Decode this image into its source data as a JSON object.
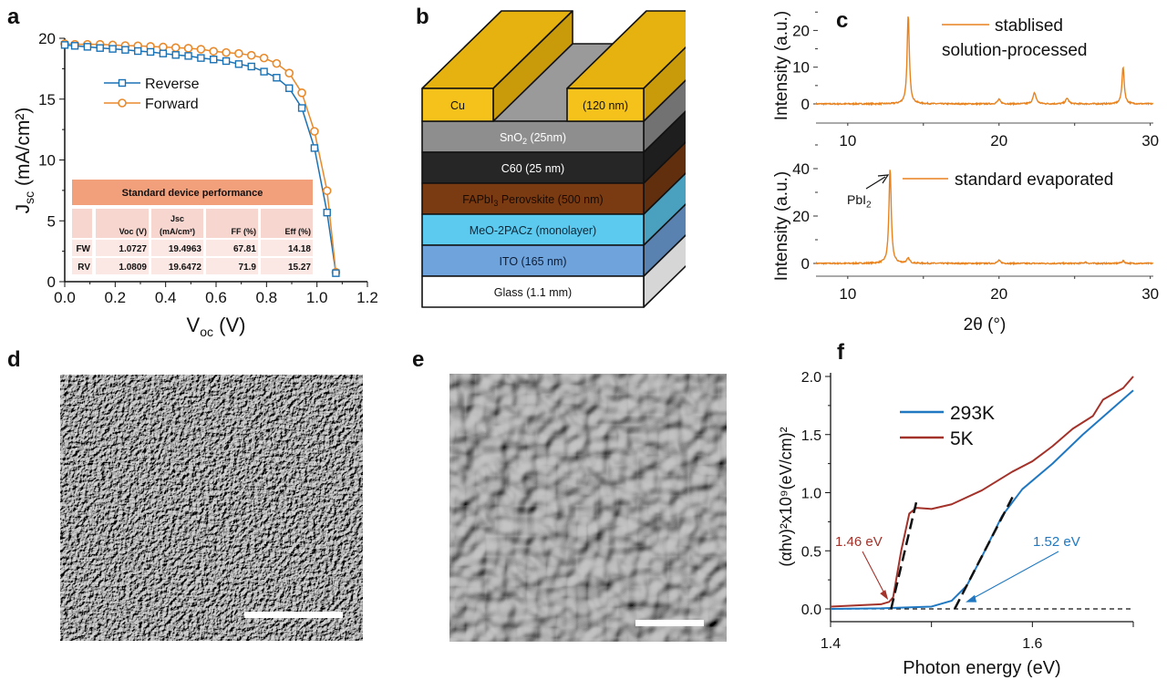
{
  "panels": {
    "a": "a",
    "b": "b",
    "c": "c",
    "d": "d",
    "e": "e",
    "f": "f"
  },
  "colors": {
    "reverse": "#1a72b5",
    "forward": "#e8892b",
    "xrd": "#e8821e",
    "k293": "#1f78c1",
    "k5": "#a3322a",
    "table_title": "#f2a07c",
    "table_head": "#f7d6cf",
    "table_row": "#fbe7e3"
  },
  "chart_data": [
    {
      "id": "a",
      "type": "line",
      "xlabel": "V",
      "xlabel_sub": "oc",
      "xlabel_unit": " (V)",
      "ylabel": "J",
      "ylabel_sub": "sc",
      "ylabel_unit": " (mA/cm²)",
      "xlim": [
        0,
        1.2
      ],
      "ylim": [
        0,
        20
      ],
      "xticks": [
        "0.0",
        "0.2",
        "0.4",
        "0.6",
        "0.8",
        "1.0",
        "1.2"
      ],
      "yticks": [
        "0",
        "5",
        "10",
        "15",
        "20"
      ],
      "legend_position": "upper-left",
      "x": [
        0,
        0.04,
        0.09,
        0.14,
        0.19,
        0.24,
        0.29,
        0.34,
        0.39,
        0.44,
        0.49,
        0.54,
        0.59,
        0.64,
        0.69,
        0.74,
        0.79,
        0.84,
        0.89,
        0.94,
        0.99,
        1.04,
        1.075
      ],
      "series": [
        {
          "name": "Reverse",
          "marker": "square",
          "values": [
            19.45,
            19.38,
            19.3,
            19.2,
            19.13,
            19.05,
            18.95,
            18.88,
            18.75,
            18.63,
            18.55,
            18.38,
            18.26,
            18.13,
            17.88,
            17.68,
            17.26,
            16.76,
            15.9,
            14.27,
            10.98,
            5.68,
            0.7
          ]
        },
        {
          "name": "Forward",
          "marker": "circle",
          "values": [
            19.55,
            19.5,
            19.5,
            19.5,
            19.45,
            19.4,
            19.38,
            19.33,
            19.28,
            19.23,
            19.18,
            19.1,
            18.93,
            18.83,
            18.75,
            18.6,
            18.38,
            17.93,
            17.14,
            15.52,
            12.35,
            7.47,
            0.77
          ]
        }
      ],
      "table": {
        "title": "Standard device performance",
        "headers": [
          "",
          "Voc (V)",
          "Jsc",
          "FF (%)",
          "Eff (%)"
        ],
        "jsc_unit": "(mA/cm²)",
        "rows": [
          [
            "FW",
            "1.0727",
            "19.4963",
            "67.81",
            "14.18"
          ],
          [
            "RV",
            "1.0809",
            "19.6472",
            "71.9",
            "15.27"
          ]
        ]
      }
    },
    {
      "id": "c-top",
      "type": "line",
      "ylabel": "Intensity (a.u.)",
      "xlim": [
        7.9,
        30.2
      ],
      "ylim": [
        -5,
        25
      ],
      "xticks": [
        "10",
        "20",
        "30"
      ],
      "yticks": [
        "0",
        "10",
        "20"
      ],
      "series": [
        {
          "name": "stablised solution-processed",
          "name_line1": "stablised",
          "name_line2": "solution-processed",
          "peaks": [
            {
              "x": 14.0,
              "y": 24
            },
            {
              "x": 20.0,
              "y": 1.2
            },
            {
              "x": 22.35,
              "y": 3
            },
            {
              "x": 24.5,
              "y": 1.5
            },
            {
              "x": 28.2,
              "y": 10
            }
          ]
        }
      ]
    },
    {
      "id": "c-bottom",
      "type": "line",
      "ylabel": "Intensity (a.u.)",
      "xlabel": "2θ (°)",
      "xlim": [
        7.9,
        30.2
      ],
      "ylim": [
        -5,
        45
      ],
      "xticks": [
        "10",
        "20",
        "30"
      ],
      "yticks": [
        "0",
        "20",
        "40"
      ],
      "annotation": {
        "text": "PbI",
        "sub": "2"
      },
      "series": [
        {
          "name": "standard evaporated",
          "peaks": [
            {
              "x": 12.8,
              "y": 40
            },
            {
              "x": 14.0,
              "y": 2
            },
            {
              "x": 20.0,
              "y": 1.2
            },
            {
              "x": 25.7,
              "y": 0.5
            },
            {
              "x": 28.2,
              "y": 1
            }
          ]
        }
      ]
    },
    {
      "id": "f",
      "type": "line",
      "xlabel": "Photon energy (eV)",
      "ylabel": "(αhν)²x10⁹(eV/cm)²",
      "xlim": [
        1.4,
        1.7
      ],
      "ylim": [
        -0.1,
        2.0
      ],
      "xticks": [
        "1.4",
        "1.6"
      ],
      "yticks": [
        "0.0",
        "0.5",
        "1.0",
        "1.5",
        "2.0"
      ],
      "legend_position": "upper-left",
      "series": [
        {
          "name": "293K",
          "x": [
            1.4,
            1.45,
            1.5,
            1.52,
            1.535,
            1.55,
            1.57,
            1.59,
            1.62,
            1.65,
            1.7
          ],
          "y": [
            0,
            0.005,
            0.02,
            0.07,
            0.2,
            0.45,
            0.8,
            1.03,
            1.25,
            1.5,
            1.88
          ]
        },
        {
          "name": "5K",
          "x": [
            1.4,
            1.45,
            1.458,
            1.462,
            1.47,
            1.478,
            1.485,
            1.5,
            1.52,
            1.55,
            1.58,
            1.6,
            1.62,
            1.64,
            1.66,
            1.67,
            1.68,
            1.69,
            1.7
          ],
          "y": [
            0.02,
            0.04,
            0.06,
            0.1,
            0.5,
            0.82,
            0.87,
            0.86,
            0.9,
            1.02,
            1.18,
            1.27,
            1.4,
            1.55,
            1.66,
            1.8,
            1.85,
            1.9,
            2.0
          ]
        }
      ],
      "tangents": [
        {
          "x": [
            1.46,
            1.485
          ],
          "y": [
            0,
            0.92
          ]
        },
        {
          "x": [
            1.523,
            1.582
          ],
          "y": [
            0,
            0.99
          ]
        }
      ],
      "annotations": [
        {
          "text": "1.46 eV",
          "series": "5K",
          "target": [
            1.458,
            0.07
          ]
        },
        {
          "text": "1.52 eV",
          "series": "293K",
          "target": [
            1.532,
            0.05
          ]
        }
      ]
    }
  ],
  "device_stack": {
    "electrode_left": "Cu",
    "electrode_right": "(120 nm)",
    "layers": [
      {
        "label": "SnO",
        "sub": "2",
        "rest": " (25nm)",
        "color": "#8e8e8e",
        "text": "#ffffff"
      },
      {
        "label": "C60 (25 nm)",
        "color": "#262626",
        "text": "#ffffff"
      },
      {
        "label": "FAPbI",
        "sub": "3",
        "rest": " Perovskite (500 nm)",
        "color": "#7a3b12",
        "text": "#1a0a00"
      },
      {
        "label": "MeO-2PACz (monolayer)",
        "color": "#5cc9ef",
        "text": "#0d2a3a"
      },
      {
        "label": "ITO (165 nm)",
        "color": "#6fa3dc",
        "text": "#0d1d35"
      },
      {
        "label": "Glass (1.1 mm)",
        "color": "#ffffff",
        "text": "#111111"
      }
    ],
    "electrode_color": "#f5c21b"
  }
}
